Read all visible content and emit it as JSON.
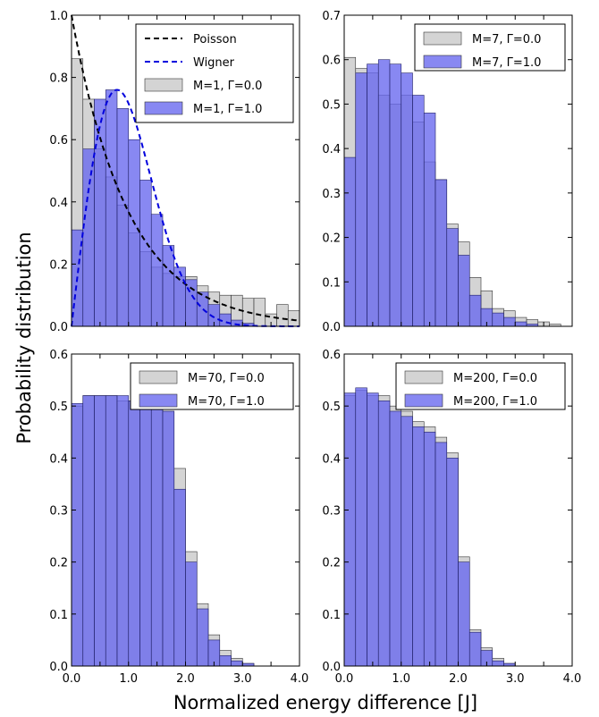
{
  "figure": {
    "ylabel": "Probability distribution",
    "xlabel": "Normalized energy difference [J]",
    "colors": {
      "gamma0_fill": "#cccccc",
      "gamma1_fill": "#6666ee",
      "gamma1_overlap": "#3a3ad8",
      "poisson_line": "#000000",
      "wigner_line": "#0000dd"
    }
  },
  "chart_data": [
    {
      "type": "bar",
      "panel": "top-left",
      "xlim": [
        0,
        4
      ],
      "ylim": [
        0,
        1.0
      ],
      "yticks": [
        "0.0",
        "0.2",
        "0.4",
        "0.6",
        "0.8",
        "1.0"
      ],
      "xticks": [],
      "bin_width": 0.2,
      "series": [
        {
          "name": "M=1, Γ=0.0",
          "values": [
            0.86,
            0.73,
            0.57,
            0.48,
            0.39,
            0.3,
            0.24,
            0.19,
            0.17,
            0.16,
            0.16,
            0.13,
            0.11,
            0.1,
            0.1,
            0.09,
            0.09,
            0.04,
            0.07,
            0.05
          ]
        },
        {
          "name": "M=1, Γ=1.0",
          "values": [
            0.31,
            0.57,
            0.73,
            0.76,
            0.7,
            0.6,
            0.47,
            0.36,
            0.26,
            0.19,
            0.15,
            0.11,
            0.07,
            0.04,
            0.02,
            0.01,
            0.0,
            0.0,
            0.0,
            0.0
          ]
        }
      ],
      "lines": [
        {
          "name": "Poisson",
          "function": "exp(-s)",
          "style": "dashed"
        },
        {
          "name": "Wigner",
          "function": "(pi/2) s exp(-pi s^2/4)",
          "style": "dashed"
        }
      ],
      "legend": {
        "placement": "top-right",
        "entries": [
          "Poisson",
          "Wigner",
          "M=1, Γ=0.0",
          "M=1, Γ=1.0"
        ]
      }
    },
    {
      "type": "bar",
      "panel": "top-right",
      "xlim": [
        0,
        4
      ],
      "ylim": [
        0,
        0.7
      ],
      "yticks": [
        "0.0",
        "0.1",
        "0.2",
        "0.3",
        "0.4",
        "0.5",
        "0.6",
        "0.7"
      ],
      "xticks": [],
      "bin_width": 0.2,
      "series": [
        {
          "name": "M=7, Γ=0.0",
          "values": [
            0.605,
            0.58,
            0.57,
            0.52,
            0.5,
            0.52,
            0.46,
            0.37,
            0.33,
            0.23,
            0.19,
            0.11,
            0.08,
            0.04,
            0.035,
            0.02,
            0.015,
            0.01,
            0.005,
            0.0
          ]
        },
        {
          "name": "M=7, Γ=1.0",
          "values": [
            0.38,
            0.57,
            0.59,
            0.6,
            0.59,
            0.57,
            0.52,
            0.48,
            0.33,
            0.22,
            0.16,
            0.07,
            0.04,
            0.03,
            0.02,
            0.01,
            0.005,
            0.0,
            0.0,
            0.0
          ]
        }
      ],
      "legend": {
        "placement": "top-right",
        "entries": [
          "M=7, Γ=0.0",
          "M=7, Γ=1.0"
        ]
      }
    },
    {
      "type": "bar",
      "panel": "bottom-left",
      "xlim": [
        0,
        4
      ],
      "ylim": [
        0,
        0.6
      ],
      "yticks": [
        "0.0",
        "0.1",
        "0.2",
        "0.3",
        "0.4",
        "0.5",
        "0.6"
      ],
      "xticks": [
        "0.0",
        "1.0",
        "2.0",
        "3.0",
        "4.0"
      ],
      "bin_width": 0.2,
      "series": [
        {
          "name": "M=70, Γ=0.0",
          "values": [
            0.5,
            0.52,
            0.52,
            0.52,
            0.51,
            0.51,
            0.51,
            0.5,
            0.49,
            0.38,
            0.22,
            0.12,
            0.06,
            0.03,
            0.015,
            0.005,
            0.0,
            0.0,
            0.0,
            0.0
          ]
        },
        {
          "name": "M=70, Γ=1.0",
          "values": [
            0.505,
            0.52,
            0.52,
            0.52,
            0.52,
            0.51,
            0.51,
            0.5,
            0.49,
            0.34,
            0.2,
            0.11,
            0.05,
            0.02,
            0.01,
            0.005,
            0.0,
            0.0,
            0.0,
            0.0
          ]
        }
      ],
      "legend": {
        "placement": "top-right",
        "entries": [
          "M=70, Γ=0.0",
          "M=70, Γ=1.0"
        ]
      }
    },
    {
      "type": "bar",
      "panel": "bottom-right",
      "xlim": [
        0,
        4
      ],
      "ylim": [
        0,
        0.6
      ],
      "yticks": [
        "0.0",
        "0.1",
        "0.2",
        "0.3",
        "0.4",
        "0.5",
        "0.6"
      ],
      "xticks": [
        "0.0",
        "1.0",
        "2.0",
        "3.0",
        "4.0"
      ],
      "bin_width": 0.2,
      "series": [
        {
          "name": "M=200, Γ=0.0",
          "values": [
            0.52,
            0.53,
            0.52,
            0.52,
            0.5,
            0.49,
            0.47,
            0.46,
            0.44,
            0.41,
            0.21,
            0.07,
            0.035,
            0.015,
            0.005,
            0.0,
            0.0,
            0.0,
            0.0,
            0.0
          ]
        },
        {
          "name": "M=200, Γ=1.0",
          "values": [
            0.525,
            0.535,
            0.525,
            0.51,
            0.49,
            0.48,
            0.46,
            0.45,
            0.43,
            0.4,
            0.2,
            0.065,
            0.03,
            0.01,
            0.005,
            0.0,
            0.0,
            0.0,
            0.0,
            0.0
          ]
        }
      ],
      "legend": {
        "placement": "top-right",
        "entries": [
          "M=200, Γ=0.0",
          "M=200, Γ=1.0"
        ]
      }
    }
  ]
}
